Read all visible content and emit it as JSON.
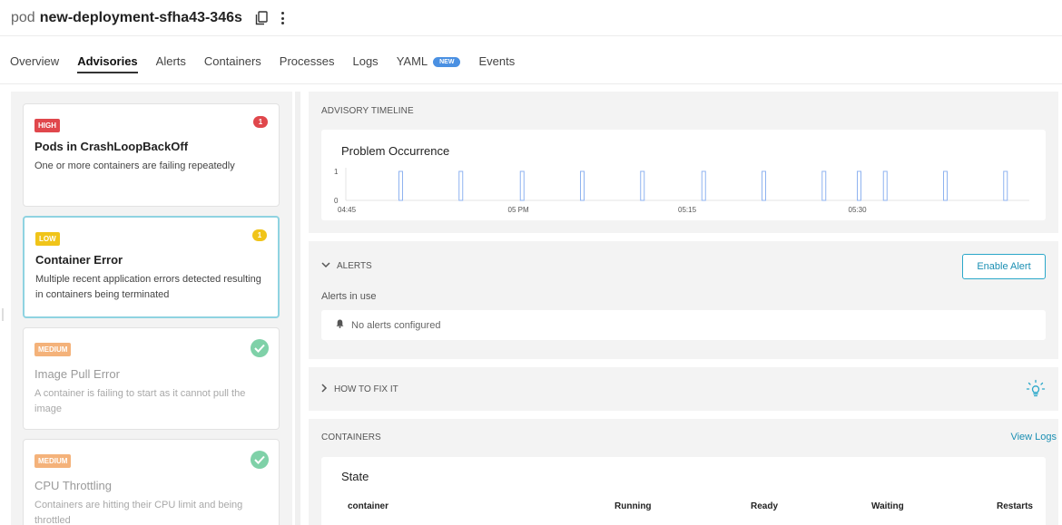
{
  "header": {
    "kind": "pod",
    "name": "new-deployment-sfha43-346s"
  },
  "icons": {
    "copy": "copy-icon",
    "more": "kebab-menu-icon",
    "check": "check-circle-icon",
    "chevron_down": "chevron-down-icon",
    "chevron_right": "chevron-right-icon",
    "bell": "bell-icon",
    "bulb": "lightbulb-icon"
  },
  "tabs": [
    {
      "label": "Overview"
    },
    {
      "label": "Advisories",
      "active": true
    },
    {
      "label": "Alerts"
    },
    {
      "label": "Containers"
    },
    {
      "label": "Processes"
    },
    {
      "label": "Logs"
    },
    {
      "label": "YAML",
      "badge": "NEW"
    },
    {
      "label": "Events"
    }
  ],
  "advisories": [
    {
      "severity": "HIGH",
      "count": "1",
      "title": "Pods in CrashLoopBackOff",
      "description": "One or more containers are failing repeatedly"
    },
    {
      "severity": "LOW",
      "count": "1",
      "title": "Container Error",
      "description": "Multiple recent application errors detected resulting in containers being terminated"
    },
    {
      "severity": "MEDIUM",
      "title": "Image Pull Error",
      "description": "A container is failing to start as it cannot pull the image"
    },
    {
      "severity": "MEDIUM",
      "title": "CPU Throttling",
      "description": "Containers are hitting their CPU limit and being throttled"
    }
  ],
  "timeline": {
    "section_title": "ADVISORY TIMELINE",
    "chart_title": "Problem Occurrence"
  },
  "chart_data": {
    "type": "bar",
    "title": "Problem Occurrence",
    "xlabel": "",
    "ylabel": "",
    "ylim": [
      0,
      1
    ],
    "y_ticks": [
      "0",
      "1"
    ],
    "x_ticks": [
      {
        "label": "04:45",
        "t": 0
      },
      {
        "label": "05 PM",
        "t": 15
      },
      {
        "label": "05:15",
        "t": 30
      },
      {
        "label": "05:30",
        "t": 45
      }
    ],
    "x_range": [
      0,
      60
    ],
    "series": [
      {
        "values": [
          {
            "t": 4.6,
            "v": 1
          },
          {
            "t": 9.9,
            "v": 1
          },
          {
            "t": 15.3,
            "v": 1
          },
          {
            "t": 20.6,
            "v": 1
          },
          {
            "t": 25.9,
            "v": 1
          },
          {
            "t": 31.3,
            "v": 1
          },
          {
            "t": 36.6,
            "v": 1
          },
          {
            "t": 41.9,
            "v": 1
          },
          {
            "t": 45.0,
            "v": 1
          },
          {
            "t": 47.3,
            "v": 1
          },
          {
            "t": 52.6,
            "v": 1
          },
          {
            "t": 57.9,
            "v": 1
          }
        ]
      }
    ],
    "color": "#8fb3f0"
  },
  "alerts": {
    "toggle_label": "ALERTS",
    "enable_button": "Enable Alert",
    "in_use_label": "Alerts in use",
    "empty_text": "No alerts configured"
  },
  "howto": {
    "toggle_label": "HOW TO FIX IT"
  },
  "containers": {
    "section_title": "CONTAINERS",
    "view_logs": "View Logs",
    "state_title": "State",
    "columns": [
      "container",
      "Running",
      "Ready",
      "Waiting",
      "Restarts"
    ]
  },
  "colors": {
    "accent": "#2aa7c9",
    "high": "#e0474c",
    "low": "#f0c419",
    "medium": "#f4b27a",
    "ok": "#7fd1a8"
  }
}
